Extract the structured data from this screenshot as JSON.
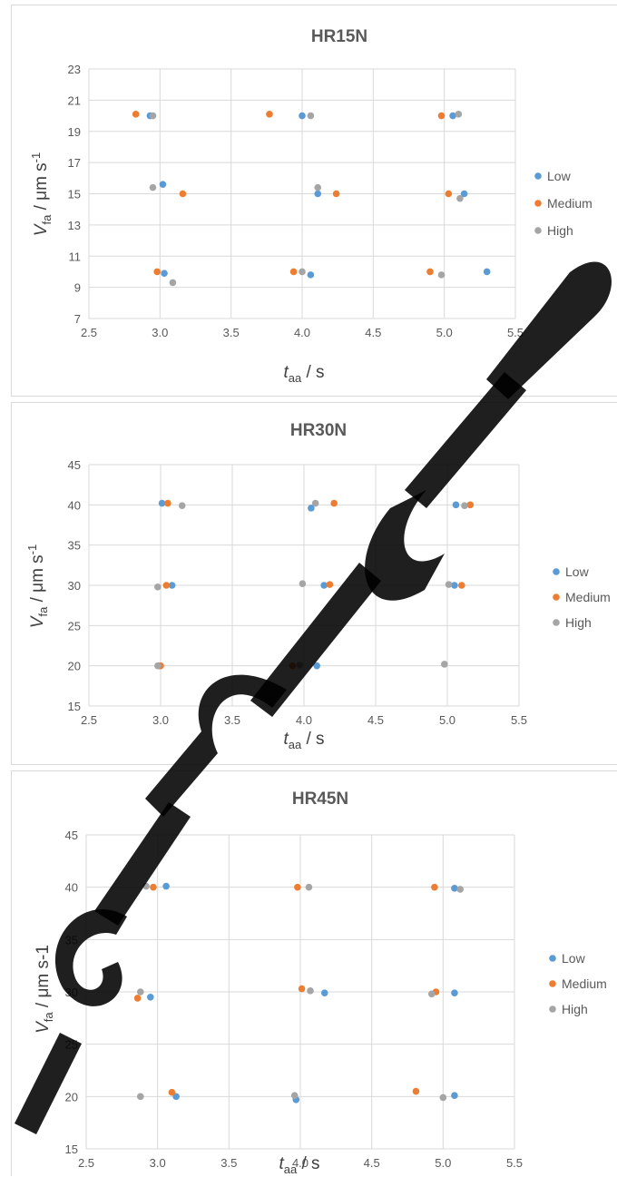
{
  "colors": {
    "Low": "#5b9bd5",
    "Medium": "#ed7d31",
    "High": "#a5a5a5"
  },
  "chart_data": [
    {
      "type": "scatter",
      "title": "HR15N",
      "xlabel": {
        "main": "t",
        "sub": "aa",
        "unit": " / s"
      },
      "ylabel": {
        "main": "V",
        "sub": "fa",
        "unit": " / μm s",
        "sup": "-1"
      },
      "xlim": [
        2.5,
        5.5
      ],
      "xticks": [
        "2.5",
        "3.0",
        "3.5",
        "4.0",
        "4.5",
        "5.0",
        "5.5"
      ],
      "ylim": [
        7,
        23
      ],
      "yticks": [
        "7",
        "9",
        "11",
        "13",
        "15",
        "17",
        "19",
        "21",
        "23"
      ],
      "grid": true,
      "legend": "right",
      "series": [
        {
          "name": "Low",
          "points": [
            [
              2.93,
              20
            ],
            [
              4.0,
              20
            ],
            [
              5.06,
              20
            ],
            [
              3.02,
              15.6
            ],
            [
              4.11,
              15
            ],
            [
              5.14,
              15
            ],
            [
              3.03,
              9.9
            ],
            [
              4.06,
              9.8
            ],
            [
              5.3,
              10
            ]
          ]
        },
        {
          "name": "Medium",
          "points": [
            [
              2.83,
              20.1
            ],
            [
              3.77,
              20.1
            ],
            [
              4.98,
              20
            ],
            [
              3.16,
              15
            ],
            [
              4.24,
              15
            ],
            [
              5.03,
              15
            ],
            [
              2.98,
              10
            ],
            [
              3.94,
              10
            ],
            [
              4.9,
              10
            ]
          ]
        },
        {
          "name": "High",
          "points": [
            [
              2.95,
              20
            ],
            [
              4.06,
              20
            ],
            [
              5.1,
              20.1
            ],
            [
              2.95,
              15.4
            ],
            [
              4.11,
              15.4
            ],
            [
              5.11,
              14.7
            ],
            [
              3.09,
              9.3
            ],
            [
              4.0,
              10
            ],
            [
              4.98,
              9.8
            ]
          ]
        }
      ]
    },
    {
      "type": "scatter",
      "title": "HR30N",
      "xlabel": {
        "main": "t",
        "sub": "aa",
        "unit": " / s"
      },
      "ylabel": {
        "main": "V",
        "sub": "fa",
        "unit": " / μm s",
        "sup": "-1"
      },
      "xlim": [
        2.5,
        5.5
      ],
      "xticks": [
        "2.5",
        "3.0",
        "3.5",
        "4.0",
        "4.5",
        "5.0",
        "5.5"
      ],
      "ylim": [
        15,
        45
      ],
      "yticks": [
        "15",
        "20",
        "25",
        "30",
        "35",
        "40",
        "45"
      ],
      "grid": true,
      "legend": "right",
      "series": [
        {
          "name": "Low",
          "points": [
            [
              3.01,
              40.2
            ],
            [
              4.05,
              39.6
            ],
            [
              5.06,
              40
            ],
            [
              3.08,
              30
            ],
            [
              4.14,
              30
            ],
            [
              5.05,
              30
            ],
            [
              2.99,
              20
            ],
            [
              4.09,
              20
            ]
          ]
        },
        {
          "name": "Medium",
          "points": [
            [
              3.05,
              40.2
            ],
            [
              4.21,
              40.2
            ],
            [
              5.16,
              40
            ],
            [
              3.04,
              30
            ],
            [
              4.18,
              30.1
            ],
            [
              5.1,
              30
            ],
            [
              3.0,
              20
            ],
            [
              3.92,
              20
            ]
          ]
        },
        {
          "name": "High",
          "points": [
            [
              3.15,
              39.9
            ],
            [
              4.08,
              40.2
            ],
            [
              5.12,
              39.9
            ],
            [
              2.98,
              29.8
            ],
            [
              3.99,
              30.2
            ],
            [
              5.01,
              30.1
            ],
            [
              2.98,
              20
            ],
            [
              3.97,
              20.1
            ],
            [
              4.98,
              20.2
            ]
          ]
        }
      ]
    },
    {
      "type": "scatter",
      "title": "HR45N",
      "xlabel": {
        "main": "t",
        "sub": "aa",
        "unit": " / s"
      },
      "ylabel": {
        "main": "V",
        "sub": "fa",
        "unit": " / μm s-1",
        "sup": ""
      },
      "xlim": [
        2.5,
        5.5
      ],
      "xticks": [
        "2.5",
        "3.0",
        "3.5",
        "4.0",
        "4.5",
        "5.0",
        "5.5"
      ],
      "ylim": [
        15,
        45
      ],
      "yticks": [
        "15",
        "20",
        "25",
        "30",
        "35",
        "40",
        "45"
      ],
      "grid": true,
      "legend": "right",
      "series": [
        {
          "name": "Low",
          "points": [
            [
              3.06,
              40.1
            ],
            [
              5.08,
              39.9
            ],
            [
              2.95,
              29.5
            ],
            [
              4.17,
              29.9
            ],
            [
              5.08,
              29.9
            ],
            [
              3.13,
              20
            ],
            [
              3.97,
              19.7
            ],
            [
              5.08,
              20.1
            ]
          ]
        },
        {
          "name": "Medium",
          "points": [
            [
              2.97,
              40
            ],
            [
              3.98,
              40
            ],
            [
              4.94,
              40
            ],
            [
              2.86,
              29.4
            ],
            [
              4.01,
              30.3
            ],
            [
              4.95,
              30
            ],
            [
              3.1,
              20.4
            ],
            [
              4.81,
              20.5
            ]
          ]
        },
        {
          "name": "High",
          "points": [
            [
              2.92,
              40.1
            ],
            [
              4.06,
              40
            ],
            [
              5.12,
              39.8
            ],
            [
              2.88,
              30
            ],
            [
              4.07,
              30.1
            ],
            [
              4.92,
              29.8
            ],
            [
              2.88,
              20
            ],
            [
              3.96,
              20.1
            ],
            [
              5.0,
              19.9
            ]
          ]
        }
      ]
    }
  ]
}
